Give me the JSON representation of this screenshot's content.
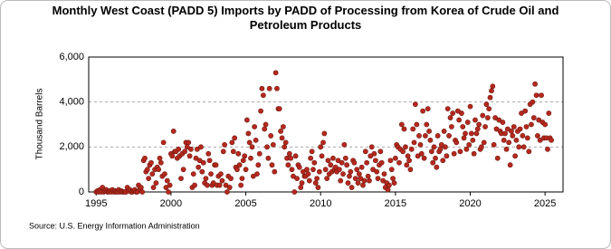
{
  "chart_data": {
    "type": "scatter",
    "title": "Monthly West Coast (PADD 5) Imports by PADD of Processing from Korea of Crude Oil and Petroleum Products",
    "ylabel": "Thousand Barrels",
    "source": "Source: U.S. Energy Information Administration",
    "color": "#b8281e",
    "xlim": [
      1994.5,
      2026.2
    ],
    "ylim": [
      0,
      6000
    ],
    "xticks": [
      1995,
      2000,
      2005,
      2010,
      2015,
      2020,
      2025
    ],
    "yticks": [
      0,
      {
        "value": 2000,
        "label": "2,000"
      },
      {
        "value": 4000,
        "label": "4,000"
      },
      {
        "value": 6000,
        "label": "6,000"
      }
    ],
    "grid": true,
    "x": [
      1995.0,
      1995.08,
      1995.17,
      1995.25,
      1995.33,
      1995.42,
      1995.5,
      1995.58,
      1995.67,
      1995.75,
      1995.83,
      1995.92,
      1996.0,
      1996.08,
      1996.17,
      1996.25,
      1996.33,
      1996.42,
      1996.5,
      1996.58,
      1996.67,
      1996.75,
      1996.83,
      1996.92,
      1997.0,
      1997.08,
      1997.17,
      1997.25,
      1997.33,
      1997.42,
      1997.5,
      1997.58,
      1997.67,
      1997.75,
      1997.83,
      1997.92,
      1998.0,
      1998.08,
      1998.17,
      1998.25,
      1998.33,
      1998.42,
      1998.5,
      1998.58,
      1998.67,
      1998.75,
      1998.83,
      1998.92,
      1999.0,
      1999.08,
      1999.17,
      1999.25,
      1999.33,
      1999.42,
      1999.5,
      1999.58,
      1999.67,
      1999.75,
      1999.83,
      1999.92,
      2000.0,
      2000.08,
      2000.17,
      2000.25,
      2000.33,
      2000.42,
      2000.5,
      2000.58,
      2000.67,
      2000.75,
      2000.83,
      2000.92,
      2001.0,
      2001.08,
      2001.17,
      2001.25,
      2001.33,
      2001.42,
      2001.5,
      2001.58,
      2001.67,
      2001.75,
      2001.83,
      2001.92,
      2002.0,
      2002.08,
      2002.17,
      2002.25,
      2002.33,
      2002.42,
      2002.5,
      2002.58,
      2002.67,
      2002.75,
      2002.83,
      2002.92,
      2003.0,
      2003.08,
      2003.17,
      2003.25,
      2003.33,
      2003.42,
      2003.5,
      2003.58,
      2003.67,
      2003.75,
      2003.83,
      2003.92,
      2004.0,
      2004.08,
      2004.17,
      2004.25,
      2004.33,
      2004.42,
      2004.5,
      2004.58,
      2004.67,
      2004.75,
      2004.83,
      2004.92,
      2005.0,
      2005.08,
      2005.17,
      2005.25,
      2005.33,
      2005.42,
      2005.5,
      2005.58,
      2005.67,
      2005.75,
      2005.83,
      2005.92,
      2006.0,
      2006.08,
      2006.17,
      2006.25,
      2006.33,
      2006.42,
      2006.5,
      2006.58,
      2006.67,
      2006.75,
      2006.83,
      2006.92,
      2007.0,
      2007.08,
      2007.17,
      2007.25,
      2007.33,
      2007.42,
      2007.5,
      2007.58,
      2007.67,
      2007.75,
      2007.83,
      2007.92,
      2008.0,
      2008.08,
      2008.17,
      2008.25,
      2008.33,
      2008.42,
      2008.5,
      2008.58,
      2008.67,
      2008.75,
      2008.83,
      2008.92,
      2009.0,
      2009.08,
      2009.17,
      2009.25,
      2009.33,
      2009.42,
      2009.5,
      2009.58,
      2009.67,
      2009.75,
      2009.83,
      2009.92,
      2010.0,
      2010.08,
      2010.17,
      2010.25,
      2010.33,
      2010.42,
      2010.5,
      2010.58,
      2010.67,
      2010.75,
      2010.83,
      2010.92,
      2011.0,
      2011.08,
      2011.17,
      2011.25,
      2011.33,
      2011.42,
      2011.5,
      2011.58,
      2011.67,
      2011.75,
      2011.83,
      2011.92,
      2012.0,
      2012.08,
      2012.17,
      2012.25,
      2012.33,
      2012.42,
      2012.5,
      2012.58,
      2012.67,
      2012.75,
      2012.83,
      2012.92,
      2013.0,
      2013.08,
      2013.17,
      2013.25,
      2013.33,
      2013.42,
      2013.5,
      2013.58,
      2013.67,
      2013.75,
      2013.83,
      2013.92,
      2014.0,
      2014.08,
      2014.17,
      2014.25,
      2014.33,
      2014.42,
      2014.5,
      2014.58,
      2014.67,
      2014.75,
      2014.83,
      2014.92,
      2015.0,
      2015.08,
      2015.17,
      2015.25,
      2015.33,
      2015.42,
      2015.5,
      2015.58,
      2015.67,
      2015.75,
      2015.83,
      2015.92,
      2016.0,
      2016.08,
      2016.17,
      2016.25,
      2016.33,
      2016.42,
      2016.5,
      2016.58,
      2016.67,
      2016.75,
      2016.83,
      2016.92,
      2017.0,
      2017.08,
      2017.17,
      2017.25,
      2017.33,
      2017.42,
      2017.5,
      2017.58,
      2017.67,
      2017.75,
      2017.83,
      2017.92,
      2018.0,
      2018.08,
      2018.17,
      2018.25,
      2018.33,
      2018.42,
      2018.5,
      2018.58,
      2018.67,
      2018.75,
      2018.83,
      2018.92,
      2019.0,
      2019.08,
      2019.17,
      2019.25,
      2019.33,
      2019.42,
      2019.5,
      2019.58,
      2019.67,
      2019.75,
      2019.83,
      2019.92,
      2020.0,
      2020.08,
      2020.17,
      2020.25,
      2020.33,
      2020.42,
      2020.5,
      2020.58,
      2020.67,
      2020.75,
      2020.83,
      2020.92,
      2021.0,
      2021.08,
      2021.17,
      2021.25,
      2021.33,
      2021.42,
      2021.5,
      2021.58,
      2021.67,
      2021.75,
      2021.83,
      2021.92,
      2022.0,
      2022.08,
      2022.17,
      2022.25,
      2022.33,
      2022.42,
      2022.5,
      2022.58,
      2022.67,
      2022.75,
      2022.83,
      2022.92,
      2023.0,
      2023.08,
      2023.17,
      2023.25,
      2023.33,
      2023.42,
      2023.5,
      2023.58,
      2023.67,
      2023.75,
      2023.83,
      2023.92,
      2024.0,
      2024.08,
      2024.17,
      2024.25,
      2024.33,
      2024.42,
      2024.5,
      2024.58,
      2024.67,
      2024.75,
      2024.83,
      2024.92,
      2025.0,
      2025.08,
      2025.17,
      2025.25,
      2025.33,
      2025.42
    ],
    "values": [
      0,
      50,
      0,
      100,
      0,
      200,
      0,
      50,
      100,
      0,
      0,
      50,
      0,
      100,
      0,
      50,
      0,
      0,
      100,
      0,
      50,
      0,
      0,
      0,
      0,
      200,
      50,
      100,
      0,
      0,
      50,
      100,
      0,
      0,
      300,
      100,
      200,
      0,
      1400,
      1500,
      900,
      1000,
      600,
      1200,
      1300,
      800,
      200,
      1000,
      400,
      1100,
      1000,
      1500,
      1300,
      700,
      2200,
      800,
      200,
      500,
      0,
      300,
      1700,
      1600,
      2700,
      1800,
      1800,
      1500,
      1900,
      1600,
      600,
      1700,
      1000,
      1800,
      2200,
      2000,
      2200,
      1600,
      1900,
      200,
      800,
      300,
      1500,
      1900,
      1100,
      1400,
      2000,
      900,
      1300,
      400,
      600,
      300,
      1700,
      1400,
      800,
      300,
      400,
      1200,
      1200,
      300,
      700,
      300,
      800,
      500,
      1800,
      2100,
      300,
      0,
      700,
      200,
      600,
      2200,
      1800,
      2400,
      1100,
      1000,
      1700,
      1200,
      300,
      600,
      1400,
      1600,
      1000,
      3200,
      2600,
      2200,
      1500,
      2000,
      700,
      2900,
      2300,
      800,
      1200,
      1700,
      3600,
      4600,
      4300,
      2800,
      3000,
      2000,
      1500,
      4600,
      2500,
      1200,
      2100,
      900,
      5300,
      4600,
      3700,
      3700,
      2700,
      2400,
      2900,
      2000,
      2200,
      1500,
      1200,
      1700,
      1500,
      1000,
      700,
      0,
      1600,
      600,
      1200,
      1100,
      200,
      400,
      900,
      700,
      700,
      1000,
      800,
      500,
      1500,
      1800,
      1000,
      1300,
      400,
      600,
      200,
      900,
      2000,
      1600,
      2200,
      2600,
      1000,
      600,
      1400,
      800,
      1200,
      900,
      1500,
      1000,
      1100,
      900,
      1400,
      1000,
      500,
      1300,
      800,
      2100,
      1500,
      1200,
      400,
      700,
      900,
      200,
      1400,
      1300,
      600,
      1000,
      400,
      800,
      600,
      1100,
      300,
      500,
      1800,
      1300,
      700,
      500,
      1600,
      2000,
      1000,
      1700,
      1400,
      900,
      600,
      1200,
      1800,
      1300,
      500,
      800,
      200,
      400,
      100,
      300,
      1400,
      1000,
      600,
      400,
      1500,
      2100,
      2000,
      1300,
      1900,
      3000,
      1800,
      2800,
      2000,
      1200,
      1600,
      1400,
      1000,
      1900,
      2800,
      2200,
      3900,
      3000,
      1600,
      2500,
      2100,
      1700,
      3600,
      1500,
      2500,
      3000,
      3700,
      2700,
      2300,
      1800,
      1300,
      2000,
      1500,
      1100,
      2500,
      1800,
      1900,
      2100,
      1400,
      2700,
      2000,
      1600,
      3700,
      2500,
      3300,
      2900,
      3500,
      1700,
      2300,
      2200,
      3600,
      3200,
      1800,
      3500,
      2900,
      2400,
      2600,
      1900,
      3100,
      2100,
      3800,
      2600,
      2300,
      1700,
      3200,
      2600,
      2800,
      3000,
      1900,
      2000,
      3400,
      2200,
      2900,
      3900,
      3300,
      3700,
      4200,
      4500,
      4700,
      2100,
      3300,
      2800,
      1500,
      3200,
      2700,
      2600,
      3100,
      2300,
      2600,
      1900,
      2800,
      2200,
      1200,
      2700,
      2500,
      2900,
      1600,
      2300,
      2700,
      2000,
      2800,
      3500,
      2500,
      2000,
      3600,
      2900,
      2400,
      1800,
      3900,
      3000,
      4000,
      3300,
      4800,
      4300,
      2500,
      3200,
      2300,
      4300,
      3100,
      2400,
      3000,
      2400,
      1900,
      3500,
      2400,
      2300
    ]
  }
}
